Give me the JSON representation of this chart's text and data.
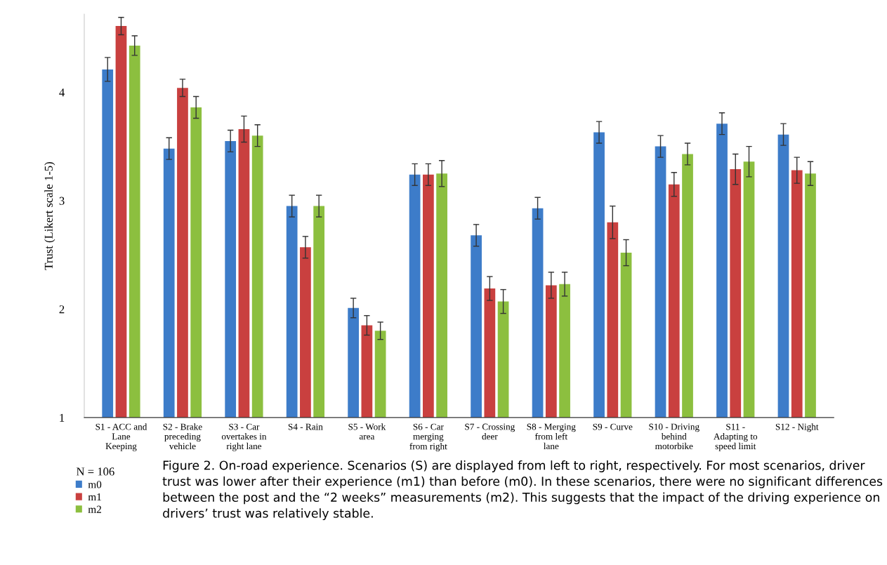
{
  "chart_data": {
    "type": "bar",
    "ylabel": "Trust (Likert scale 1-5)",
    "categories": [
      "S1 - ACC and\nLane\nKeeping",
      "S2 - Brake\npreceding\nvehicle",
      "S3 - Car\novertakes in\nright lane",
      "S4 - Rain",
      "S5 - Work\narea",
      "S6 - Car\nmerging\nfrom right",
      "S7 - Crossing\ndeer",
      "S8 - Merging\nfrom left\nlane",
      "S9 - Curve",
      "S10 - Driving\nbehind\nmotorbike",
      "S11 -\nAdapting to\nspeed limit",
      "S12 - Night"
    ],
    "series": [
      {
        "name": "m0",
        "color": "#3d7cc9",
        "values": [
          4.21,
          3.48,
          3.55,
          2.95,
          2.01,
          3.24,
          2.68,
          2.93,
          3.63,
          3.5,
          3.71,
          3.61
        ],
        "errors": [
          0.11,
          0.1,
          0.1,
          0.1,
          0.09,
          0.1,
          0.1,
          0.1,
          0.1,
          0.1,
          0.1,
          0.1
        ]
      },
      {
        "name": "m1",
        "color": "#c9403f",
        "values": [
          4.61,
          4.04,
          3.66,
          2.57,
          1.85,
          3.24,
          2.19,
          2.22,
          2.8,
          3.15,
          3.29,
          3.28
        ],
        "errors": [
          0.08,
          0.08,
          0.12,
          0.1,
          0.09,
          0.1,
          0.11,
          0.12,
          0.15,
          0.11,
          0.14,
          0.12
        ]
      },
      {
        "name": "m2",
        "color": "#8cbf3f",
        "values": [
          4.43,
          3.86,
          3.6,
          2.95,
          1.8,
          3.25,
          2.07,
          2.23,
          2.52,
          3.43,
          3.36,
          3.25
        ],
        "errors": [
          0.09,
          0.1,
          0.1,
          0.1,
          0.08,
          0.12,
          0.11,
          0.11,
          0.12,
          0.1,
          0.14,
          0.11
        ]
      }
    ],
    "ylim": [
      1,
      4.72
    ],
    "yticks": [
      1,
      2,
      3,
      4
    ],
    "grid": false,
    "legend": "bottom left",
    "legend_title": "N = 106",
    "annotations": [
      "Figure 2. On-road experience. Scenarios (S) are displayed from left to right, respectively. For most scenarios, driver trust was lower after their experience (m1) than before (m0). In these scenarios, there were no significant differences between the post and the “2 weeks” measurements (m2). This suggests that the impact of the driving experience on drivers’ trust was relatively stable."
    ]
  }
}
